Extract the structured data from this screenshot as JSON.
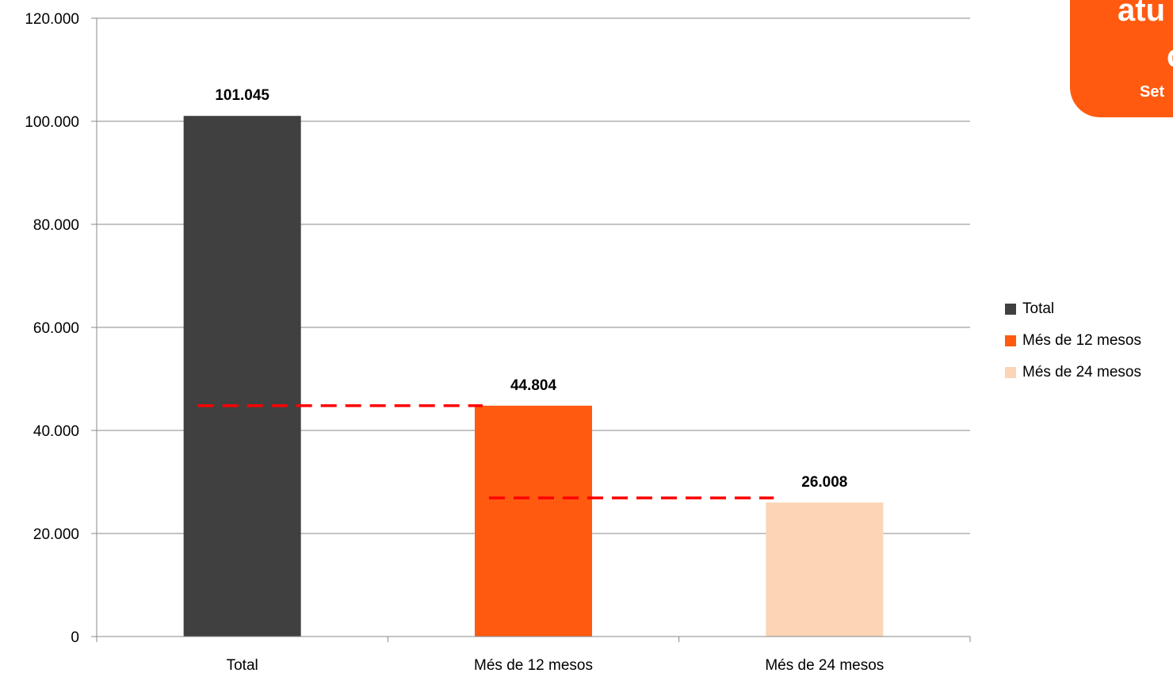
{
  "chart_data": {
    "type": "bar",
    "categories": [
      "Total",
      "Més de 12 mesos",
      "Més de 24 mesos"
    ],
    "values": [
      101045,
      44804,
      26008
    ],
    "data_labels": [
      "101.045",
      "44.804",
      "26.008"
    ],
    "colors": [
      "#404040",
      "#FF5A10",
      "#FBD5B5"
    ],
    "ylim": [
      0,
      120000
    ],
    "yticks": [
      {
        "value": 0,
        "label": "0"
      },
      {
        "value": 20000,
        "label": "20.000"
      },
      {
        "value": 40000,
        "label": "40.000"
      },
      {
        "value": 60000,
        "label": "60.000"
      },
      {
        "value": 80000,
        "label": "80.000"
      },
      {
        "value": 100000,
        "label": "100.000"
      },
      {
        "value": 120000,
        "label": "120.000"
      }
    ],
    "grid": true,
    "legend_position": "right",
    "reference_lines": [
      {
        "from_category": 0,
        "to_category": 1,
        "value": 44804,
        "color": "#FF0000",
        "style": "dashed"
      },
      {
        "from_category": 1,
        "to_category": 2,
        "value": 26900,
        "color": "#FF0000",
        "style": "dashed"
      }
    ]
  },
  "legend": {
    "items": [
      {
        "label": "Total",
        "color": "#404040"
      },
      {
        "label": "Més de 12 mesos",
        "color": "#FF5A10"
      },
      {
        "label": "Més de 24 mesos",
        "color": "#FBD5B5"
      }
    ]
  },
  "corner_badge": {
    "line1": "atu",
    "line2": "c",
    "line3": "Set",
    "color": "#FF5A10"
  }
}
